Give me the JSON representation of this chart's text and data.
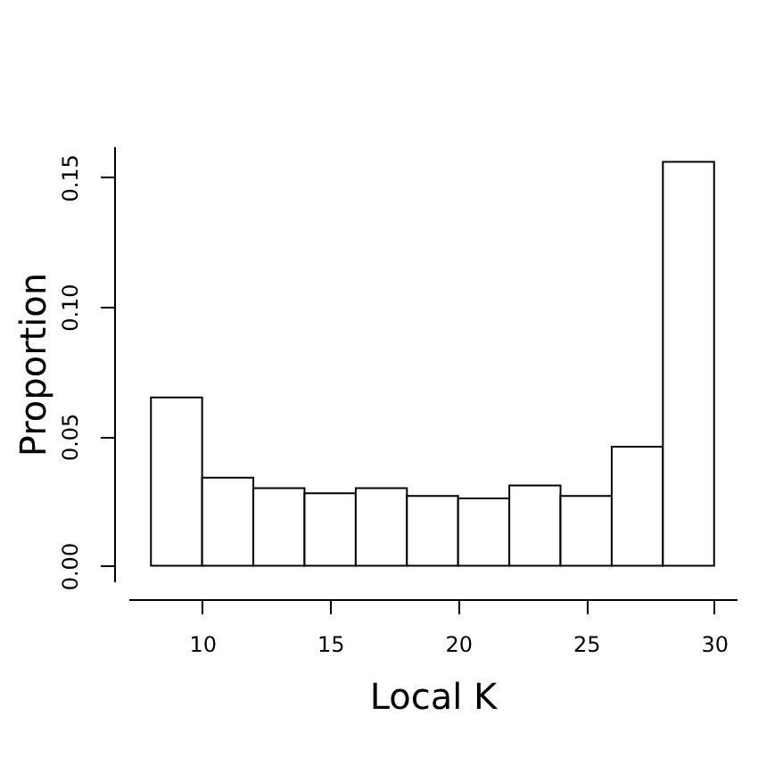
{
  "chart_data": {
    "type": "histogram",
    "xlabel": "Local K",
    "ylabel": "Proportion",
    "bins": [
      8,
      10,
      12,
      14,
      16,
      18,
      20,
      22,
      24,
      26,
      28,
      30
    ],
    "values": [
      0.065,
      0.034,
      0.03,
      0.028,
      0.03,
      0.027,
      0.026,
      0.031,
      0.027,
      0.046,
      0.156
    ],
    "color": "#ffffff",
    "xlim": [
      7.12,
      30.88
    ],
    "xticks": [
      10,
      15,
      20,
      25,
      30
    ],
    "ylim": [
      -0.006,
      0.162
    ],
    "yticks": [
      {
        "value": 0,
        "label": "0.00"
      },
      {
        "value": 0.05,
        "label": "0.05"
      },
      {
        "value": 0.1,
        "label": "0.10"
      },
      {
        "value": 0.15,
        "label": "0.15"
      }
    ],
    "grid": false
  }
}
